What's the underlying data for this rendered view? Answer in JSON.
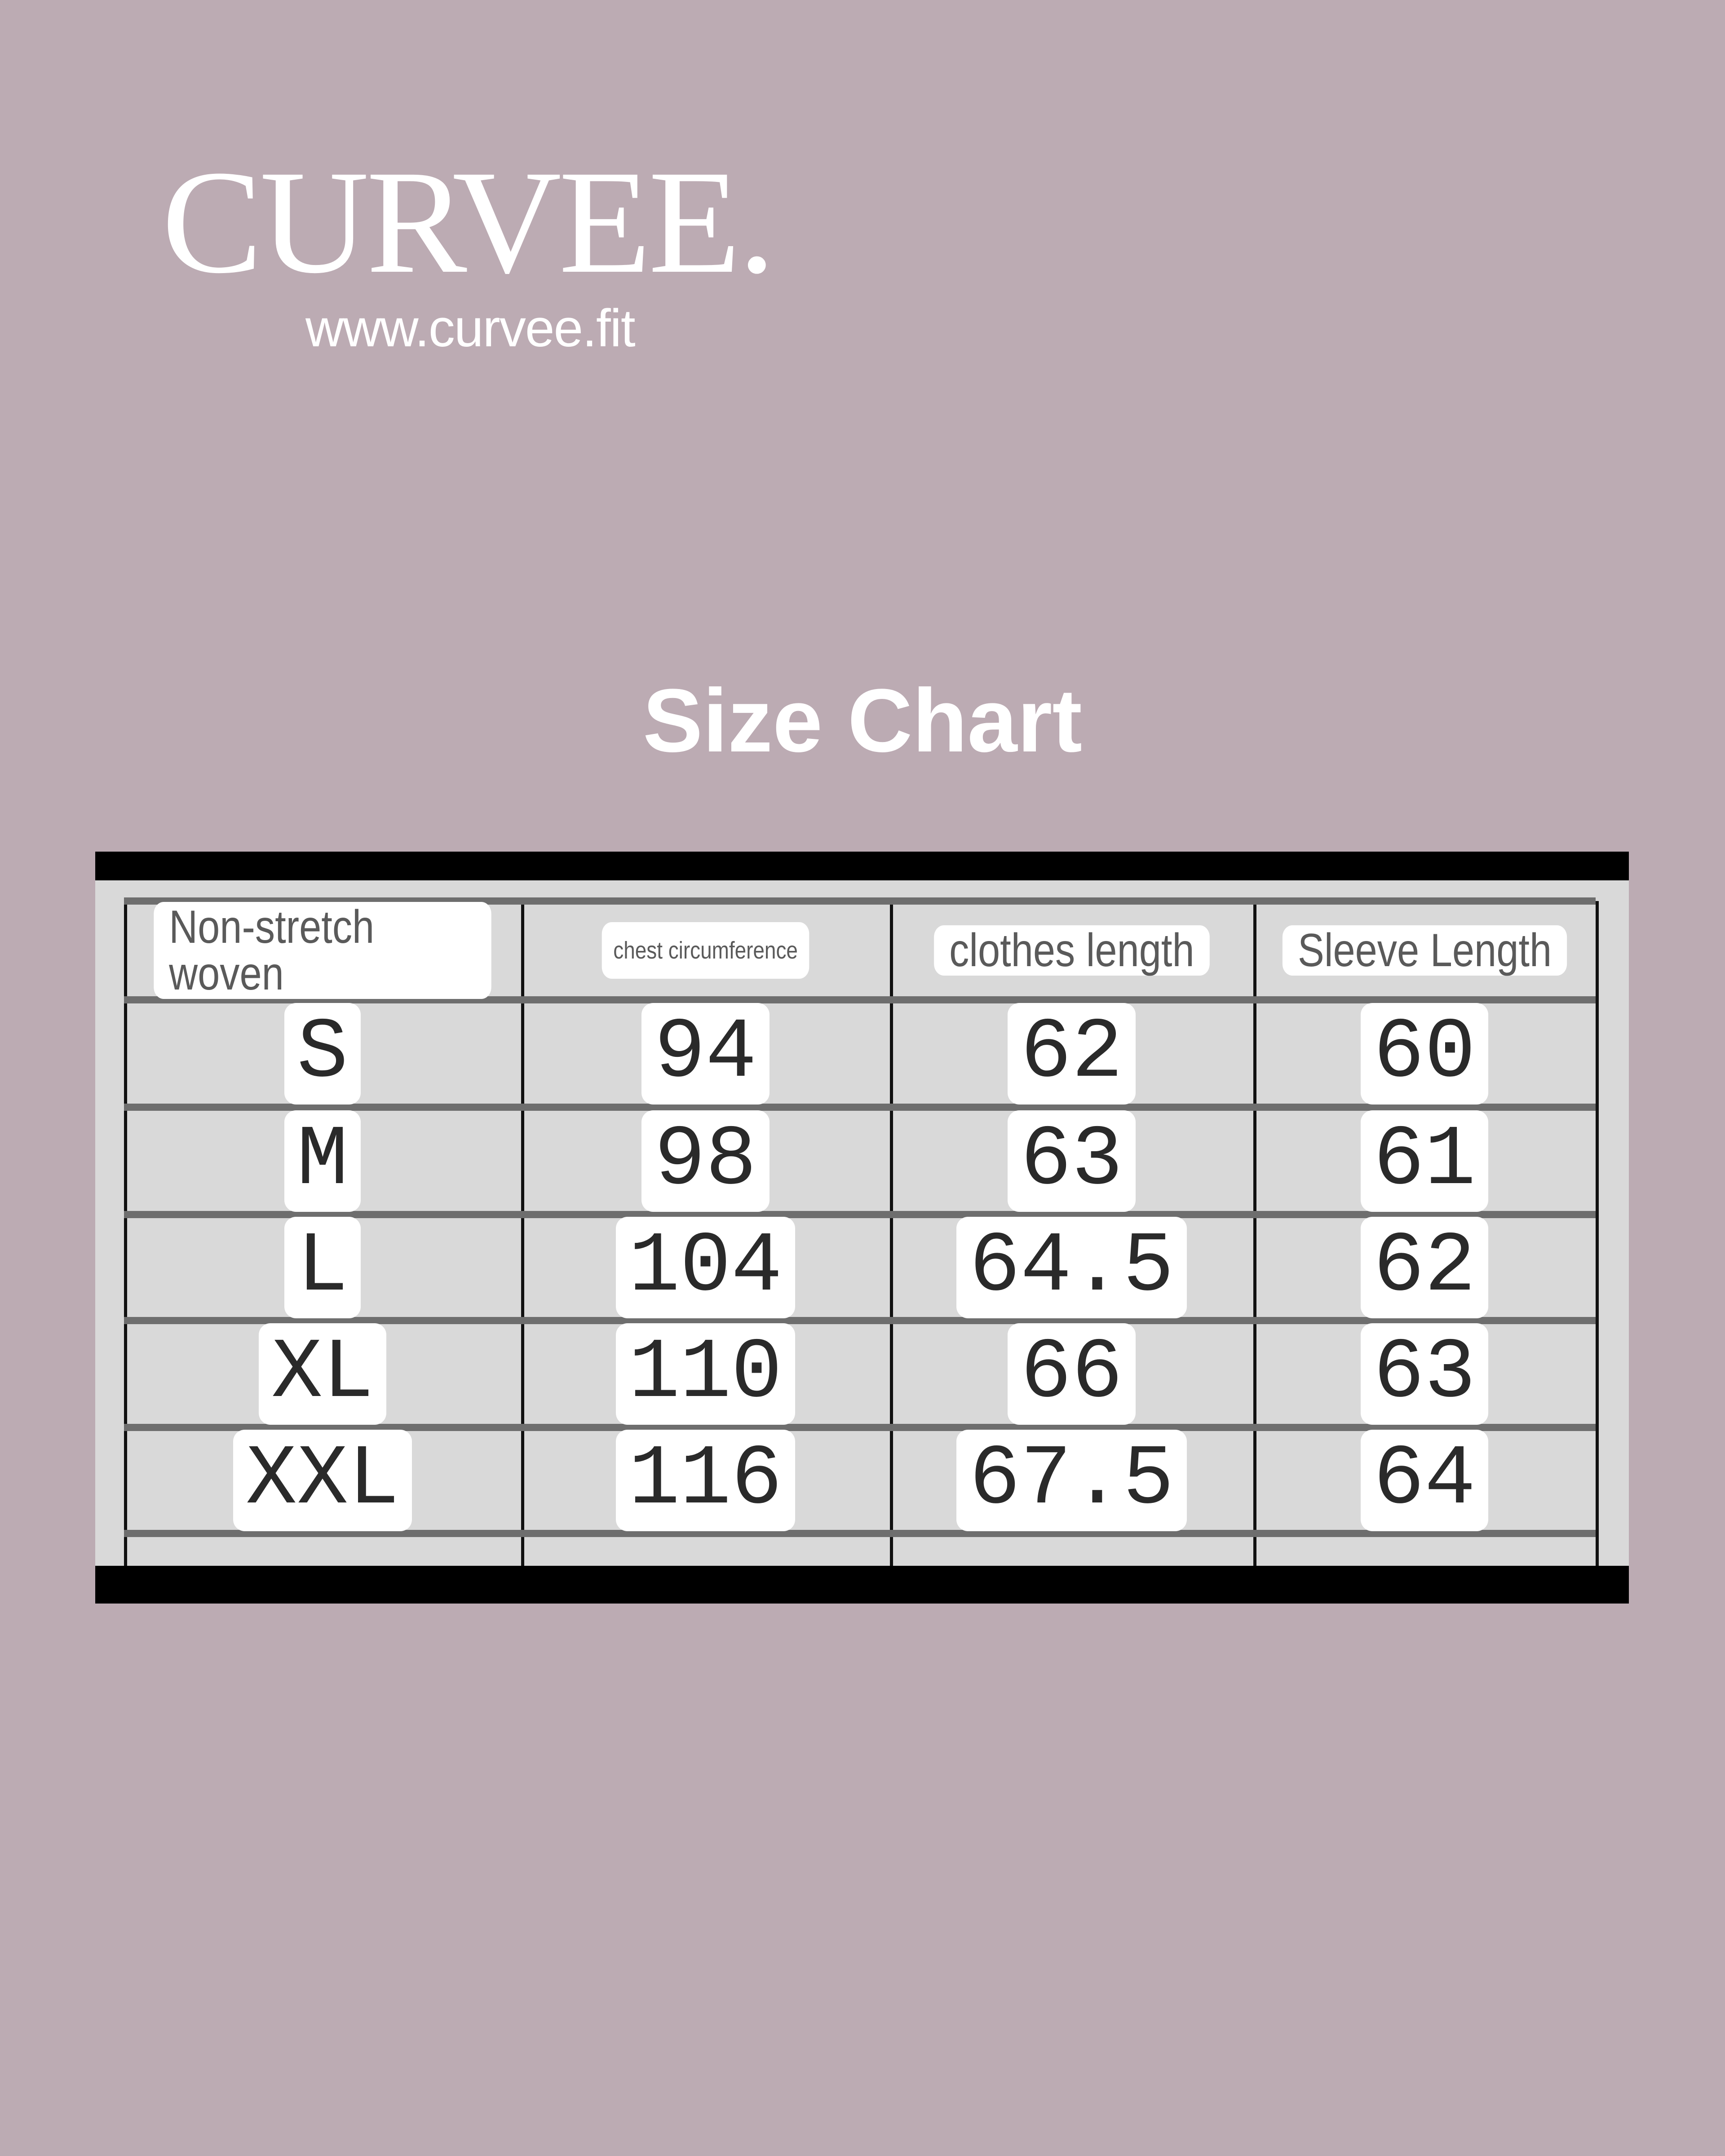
{
  "brand": {
    "logo_text": "CURVEE.",
    "url": "www.curvee.fit"
  },
  "page_title": "Size Chart",
  "colors": {
    "background": "#bcabb3",
    "text": "#ffffff",
    "table_background": "#d9d9d9"
  },
  "size_table": {
    "headers": [
      "Non-stretch woven",
      "chest circumference",
      "clothes length",
      "Sleeve Length"
    ],
    "rows": [
      [
        "S",
        "94",
        "62",
        "60"
      ],
      [
        "M",
        "98",
        "63",
        "61"
      ],
      [
        "L",
        "104",
        "64.5",
        "62"
      ],
      [
        "XL",
        "110",
        "66",
        "63"
      ],
      [
        "XXL",
        "116",
        "67.5",
        "64"
      ]
    ]
  }
}
